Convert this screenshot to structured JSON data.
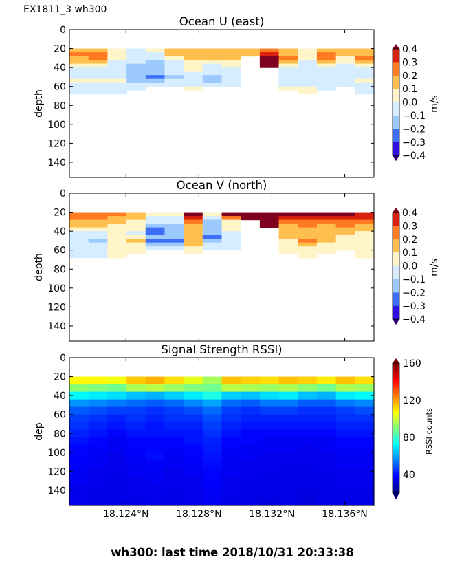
{
  "suptitle": "EX1811_3 wh300",
  "footer": "wh300: last time 2018/10/31 20:33:38",
  "chart_data": [
    {
      "type": "heatmap",
      "title": "Ocean U (east)",
      "ylabel": "depth",
      "colorbar_label": "m/s",
      "colorbar_ticks": [
        "0.4",
        "0.3",
        "0.2",
        "0.1",
        "0.0",
        "−0.1",
        "−0.2",
        "−0.3",
        "−0.4"
      ],
      "colorbar_tick_values": [
        0.4,
        0.3,
        0.2,
        0.1,
        0.0,
        -0.1,
        -0.2,
        -0.3,
        -0.4
      ],
      "yticks": [
        "0",
        "20",
        "40",
        "60",
        "80",
        "100",
        "120",
        "140"
      ],
      "ytick_values": [
        0,
        20,
        40,
        60,
        80,
        100,
        120,
        140
      ],
      "ylim": [
        156,
        0
      ],
      "xlim": [
        18.1209,
        18.1376
      ],
      "depth_bins": [
        20,
        24,
        28,
        32,
        36,
        40,
        44,
        48,
        52,
        56,
        60,
        64
      ],
      "depth_bin_size": 4,
      "columns": 16,
      "values": [
        [
          0.15,
          0.2,
          0.1,
          0.1,
          0.05,
          -0.05,
          -0.05,
          -0.05,
          0.05,
          -0.05,
          -0.05,
          -0.05
        ],
        [
          0.15,
          0.25,
          0.25,
          0.15,
          0.05,
          -0.05,
          -0.05,
          -0.05,
          0.05,
          -0.05,
          -0.05,
          -0.05
        ],
        [
          0.05,
          0.05,
          0.05,
          -0.05,
          -0.05,
          -0.05,
          -0.05,
          -0.05,
          0.05,
          -0.05,
          -0.05,
          -0.05
        ],
        [
          -0.05,
          -0.05,
          -0.05,
          -0.05,
          -0.15,
          -0.15,
          -0.15,
          -0.15,
          -0.15,
          -0.05,
          -0.05,
          null
        ],
        [
          0.05,
          -0.05,
          -0.05,
          -0.15,
          -0.15,
          -0.15,
          -0.15,
          -0.25,
          -0.15,
          -0.05,
          null,
          null
        ],
        [
          0.15,
          0.15,
          0.05,
          -0.05,
          -0.05,
          -0.05,
          -0.05,
          -0.15,
          -0.05,
          -0.05,
          null,
          null
        ],
        [
          0.15,
          0.15,
          0.15,
          0.05,
          0.05,
          0.05,
          -0.05,
          -0.05,
          -0.05,
          -0.05,
          0.05,
          null
        ],
        [
          0.15,
          0.15,
          0.15,
          0.05,
          -0.05,
          -0.05,
          -0.05,
          -0.15,
          -0.15,
          -0.05,
          null,
          null
        ],
        [
          0.15,
          0.15,
          0.15,
          0.05,
          0.05,
          -0.05,
          -0.05,
          -0.05,
          -0.05,
          -0.05,
          null,
          null
        ],
        [
          0.15,
          0.15,
          null,
          null,
          null,
          null,
          null,
          null,
          null,
          null,
          null,
          null
        ],
        [
          0.25,
          0.35,
          0.45,
          0.45,
          0.45,
          null,
          null,
          null,
          null,
          null,
          null,
          null
        ],
        [
          0.15,
          0.15,
          0.25,
          0.15,
          0.05,
          -0.05,
          -0.05,
          -0.05,
          -0.05,
          -0.05,
          0.05,
          null
        ],
        [
          0.05,
          0.05,
          0.05,
          -0.05,
          -0.05,
          -0.05,
          -0.05,
          -0.05,
          -0.05,
          -0.05,
          0.05,
          0.05
        ],
        [
          0.15,
          0.25,
          0.25,
          0.15,
          0.05,
          -0.05,
          -0.05,
          -0.05,
          -0.05,
          -0.05,
          -0.05,
          null
        ],
        [
          0.15,
          0.15,
          0.05,
          0.05,
          -0.05,
          -0.05,
          -0.05,
          -0.05,
          -0.05,
          -0.05,
          null,
          null
        ],
        [
          0.15,
          0.15,
          0.2,
          0.15,
          0.05,
          -0.05,
          -0.05,
          -0.05,
          0.05,
          -0.05,
          -0.05,
          -0.05
        ]
      ]
    },
    {
      "type": "heatmap",
      "title": "Ocean V (north)",
      "ylabel": "depth",
      "colorbar_label": "m/s",
      "colorbar_ticks": [
        "0.4",
        "0.3",
        "0.2",
        "0.1",
        "0.0",
        "−0.1",
        "−0.2",
        "−0.3",
        "−0.4"
      ],
      "colorbar_tick_values": [
        0.4,
        0.3,
        0.2,
        0.1,
        0.0,
        -0.1,
        -0.2,
        -0.3,
        -0.4
      ],
      "yticks": [
        "0",
        "20",
        "40",
        "60",
        "80",
        "100",
        "120",
        "140"
      ],
      "ytick_values": [
        0,
        20,
        40,
        60,
        80,
        100,
        120,
        140
      ],
      "ylim": [
        156,
        0
      ],
      "xlim": [
        18.1209,
        18.1376
      ],
      "depth_bins": [
        20,
        24,
        28,
        32,
        36,
        40,
        44,
        48,
        52,
        56,
        60,
        64
      ],
      "depth_bin_size": 4,
      "columns": 16,
      "values": [
        [
          0.25,
          0.25,
          0.15,
          0.15,
          0.05,
          -0.05,
          -0.05,
          -0.05,
          -0.05,
          -0.05,
          -0.05,
          -0.05
        ],
        [
          0.25,
          0.25,
          0.15,
          0.15,
          0.05,
          -0.05,
          -0.05,
          -0.15,
          -0.05,
          -0.05,
          -0.05,
          -0.05
        ],
        [
          0.25,
          0.15,
          0.15,
          0.05,
          0.05,
          0.05,
          0.05,
          0.05,
          0.05,
          0.05,
          0.05,
          0.05
        ],
        [
          0.15,
          0.15,
          0.05,
          0.05,
          0.05,
          -0.05,
          0.05,
          0.15,
          0.05,
          0.05,
          0.05,
          null
        ],
        [
          0.05,
          -0.05,
          -0.05,
          -0.15,
          -0.25,
          -0.25,
          -0.15,
          -0.25,
          -0.15,
          -0.05,
          null,
          null
        ],
        [
          0.05,
          -0.05,
          -0.05,
          -0.15,
          -0.15,
          -0.15,
          -0.15,
          -0.25,
          -0.15,
          -0.05,
          null,
          null
        ],
        [
          0.45,
          0.35,
          0.25,
          0.15,
          0.15,
          0.15,
          0.15,
          0.15,
          0.15,
          0.05,
          0.05,
          null
        ],
        [
          0.05,
          -0.05,
          -0.15,
          -0.15,
          -0.15,
          -0.15,
          -0.25,
          -0.15,
          -0.05,
          -0.05,
          null,
          null
        ],
        [
          0.45,
          0.25,
          0.05,
          0.05,
          0.05,
          -0.05,
          -0.05,
          -0.05,
          -0.05,
          -0.05,
          null,
          null
        ],
        [
          0.45,
          0.45,
          null,
          null,
          null,
          null,
          null,
          null,
          null,
          null,
          null,
          null
        ],
        [
          0.45,
          0.45,
          0.45,
          0.45,
          null,
          null,
          null,
          null,
          null,
          null,
          null,
          null
        ],
        [
          0.45,
          0.35,
          0.25,
          0.15,
          0.15,
          0.15,
          0.15,
          0.05,
          0.05,
          0.05,
          0.05,
          null
        ],
        [
          0.45,
          0.35,
          0.25,
          0.25,
          0.15,
          0.15,
          0.15,
          0.25,
          0.15,
          0.05,
          0.05,
          0.05
        ],
        [
          0.45,
          0.35,
          0.25,
          0.15,
          0.15,
          0.15,
          0.15,
          0.15,
          0.05,
          0.05,
          0.05,
          null
        ],
        [
          0.45,
          0.35,
          0.25,
          0.25,
          0.15,
          0.15,
          0.05,
          0.05,
          0.05,
          0.05,
          null,
          null
        ],
        [
          0.35,
          0.35,
          0.25,
          0.15,
          0.15,
          0.05,
          0.05,
          0.05,
          0.05,
          0.05,
          0.05,
          0.05
        ]
      ]
    },
    {
      "type": "heatmap",
      "title": "Signal Strength RSSI)",
      "ylabel": "dep",
      "colorbar_label": "RSSI counts",
      "colorbar_ticks": [
        "160",
        "120",
        "80",
        "40"
      ],
      "colorbar_tick_values": [
        160,
        120,
        80,
        40
      ],
      "color_range": [
        20,
        160
      ],
      "yticks": [
        "0",
        "20",
        "40",
        "60",
        "80",
        "100",
        "120",
        "140"
      ],
      "ytick_values": [
        0,
        20,
        40,
        60,
        80,
        100,
        120,
        140
      ],
      "xticks": [
        "18.124°N",
        "18.128°N",
        "18.132°N",
        "18.136°N"
      ],
      "xtick_values": [
        18.124,
        18.128,
        18.132,
        18.136
      ],
      "ylim": [
        156,
        0
      ],
      "xlim": [
        18.1209,
        18.1376
      ],
      "depth_bins": [
        20,
        28,
        36,
        44,
        52,
        60,
        68,
        76,
        84,
        92,
        100,
        108,
        116,
        124,
        132,
        140,
        148
      ],
      "depth_bin_size": 8,
      "columns": 16,
      "rows_by_depth": [
        [
          108,
          108,
          106,
          115,
          118,
          112,
          104,
          95,
          116,
          114,
          112,
          116,
          114,
          110,
          116,
          112
        ],
        [
          92,
          90,
          88,
          96,
          98,
          94,
          90,
          88,
          98,
          96,
          94,
          96,
          92,
          88,
          96,
          94
        ],
        [
          72,
          70,
          68,
          64,
          62,
          66,
          70,
          76,
          66,
          64,
          68,
          70,
          64,
          62,
          70,
          72
        ],
        [
          58,
          56,
          54,
          52,
          50,
          52,
          56,
          60,
          52,
          50,
          54,
          54,
          50,
          50,
          54,
          56
        ],
        [
          50,
          48,
          46,
          46,
          44,
          46,
          48,
          52,
          46,
          44,
          46,
          46,
          44,
          44,
          46,
          48
        ],
        [
          46,
          44,
          42,
          44,
          42,
          44,
          44,
          48,
          44,
          42,
          42,
          42,
          42,
          42,
          44,
          44
        ],
        [
          44,
          42,
          40,
          42,
          40,
          42,
          42,
          46,
          42,
          40,
          40,
          40,
          40,
          40,
          42,
          42
        ],
        [
          42,
          40,
          38,
          40,
          40,
          40,
          40,
          44,
          40,
          38,
          38,
          38,
          38,
          38,
          40,
          40
        ],
        [
          40,
          38,
          36,
          38,
          38,
          38,
          40,
          42,
          38,
          38,
          36,
          36,
          36,
          36,
          38,
          38
        ],
        [
          38,
          37,
          36,
          37,
          38,
          37,
          38,
          41,
          37,
          36,
          36,
          36,
          35,
          36,
          37,
          37
        ],
        [
          37,
          36,
          35,
          37,
          39,
          36,
          37,
          40,
          36,
          36,
          35,
          35,
          35,
          35,
          36,
          36
        ],
        [
          37,
          36,
          35,
          36,
          37,
          36,
          37,
          39,
          36,
          35,
          35,
          35,
          35,
          35,
          36,
          36
        ],
        [
          36,
          35,
          35,
          36,
          36,
          35,
          36,
          38,
          36,
          35,
          35,
          34,
          34,
          35,
          35,
          35
        ],
        [
          36,
          35,
          34,
          35,
          36,
          35,
          35,
          37,
          35,
          35,
          34,
          34,
          34,
          34,
          35,
          35
        ],
        [
          35,
          35,
          34,
          35,
          35,
          35,
          35,
          37,
          35,
          34,
          34,
          34,
          34,
          34,
          35,
          35
        ],
        [
          35,
          34,
          34,
          35,
          35,
          34,
          35,
          36,
          35,
          34,
          34,
          34,
          33,
          34,
          34,
          34
        ],
        [
          35,
          34,
          34,
          34,
          35,
          34,
          35,
          36,
          34,
          34,
          33,
          34,
          33,
          34,
          34,
          34
        ]
      ]
    }
  ],
  "colors": {
    "levels_uv": [
      "#2a0070",
      "#3010e0",
      "#3d6ef5",
      "#9ccaff",
      "#d6ecff",
      "#fff5c8",
      "#ffbf4f",
      "#ff7a22",
      "#d9200e",
      "#800020"
    ]
  }
}
